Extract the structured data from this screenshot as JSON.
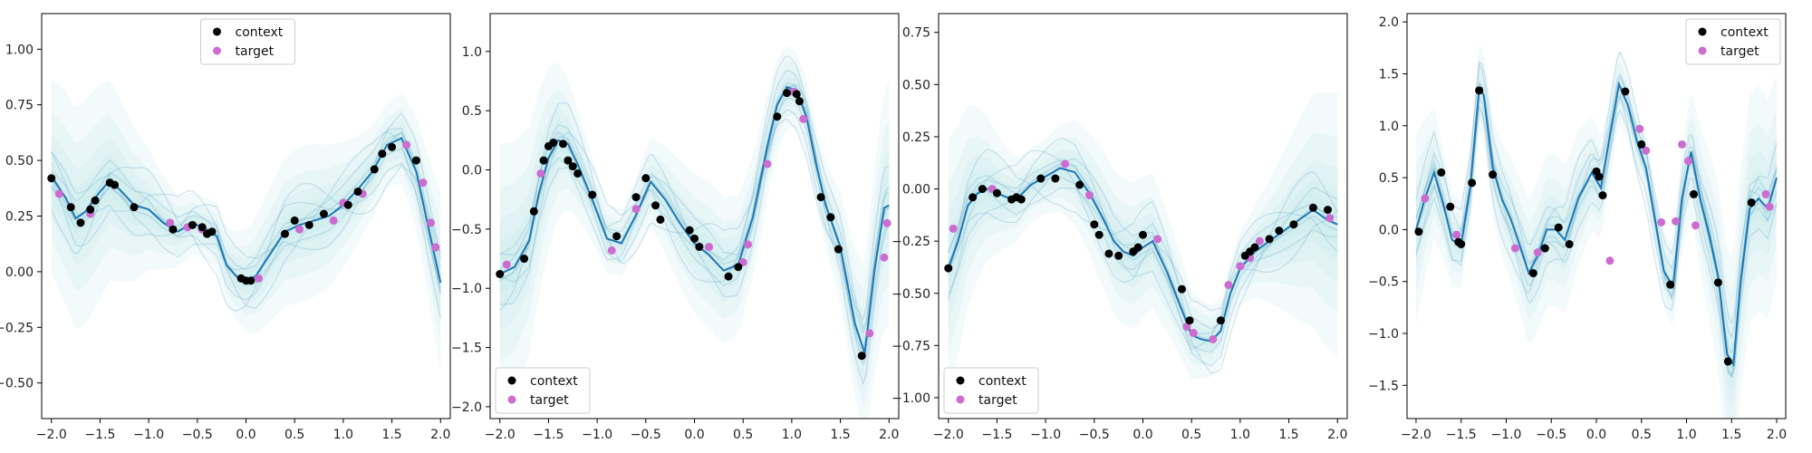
{
  "colors": {
    "context": "#000000",
    "target": "#cc6cd1",
    "mean_line": "#1f77b4",
    "sample_line": "#5aa2c8",
    "band": "#bfe6ea"
  },
  "chart_data": [
    {
      "type": "line",
      "xlim": [
        -2.1,
        2.1
      ],
      "ylim": [
        -0.66,
        1.16
      ],
      "xticks": [
        -2.0,
        -1.5,
        -1.0,
        -0.5,
        0.0,
        0.5,
        1.0,
        1.5,
        2.0
      ],
      "xtick_labels": [
        "−2.0",
        "−1.5",
        "−1.0",
        "−0.5",
        "0.0",
        "0.5",
        "1.0",
        "1.5",
        "2.0"
      ],
      "yticks": [
        -0.5,
        -0.25,
        0.0,
        0.25,
        0.5,
        0.75,
        1.0
      ],
      "ytick_labels": [
        "−0.50",
        "−0.25",
        "0.00",
        "0.25",
        "0.50",
        "0.75",
        "1.00"
      ],
      "grid": false,
      "legend": {
        "position": "top-center",
        "entries": [
          "context",
          "target"
        ]
      },
      "mean": {
        "x": [
          -2.0,
          -1.85,
          -1.75,
          -1.65,
          -1.5,
          -1.4,
          -1.3,
          -1.15,
          -1.0,
          -0.85,
          -0.7,
          -0.55,
          -0.4,
          -0.3,
          -0.2,
          -0.1,
          0.0,
          0.1,
          0.25,
          0.4,
          0.55,
          0.7,
          0.85,
          1.0,
          1.15,
          1.3,
          1.45,
          1.6,
          1.75,
          1.9,
          2.0
        ],
        "y": [
          0.43,
          0.33,
          0.24,
          0.27,
          0.36,
          0.41,
          0.37,
          0.3,
          0.28,
          0.22,
          0.18,
          0.22,
          0.19,
          0.16,
          0.03,
          -0.02,
          -0.04,
          -0.02,
          0.08,
          0.18,
          0.21,
          0.23,
          0.25,
          0.3,
          0.37,
          0.45,
          0.57,
          0.6,
          0.45,
          0.15,
          -0.05
        ]
      },
      "context": {
        "x": [
          -2.0,
          -1.8,
          -1.7,
          -1.6,
          -1.55,
          -1.4,
          -1.35,
          -1.15,
          -0.75,
          -0.55,
          -0.45,
          -0.4,
          -0.35,
          -0.05,
          0.0,
          0.05,
          0.4,
          0.5,
          0.65,
          0.8,
          1.05,
          1.15,
          1.32,
          1.4,
          1.5,
          1.75
        ],
        "y": [
          0.42,
          0.29,
          0.22,
          0.28,
          0.32,
          0.4,
          0.39,
          0.29,
          0.19,
          0.21,
          0.2,
          0.17,
          0.18,
          -0.03,
          -0.04,
          -0.04,
          0.17,
          0.23,
          0.21,
          0.26,
          0.3,
          0.36,
          0.46,
          0.53,
          0.56,
          0.5
        ]
      },
      "target": {
        "x": [
          -1.92,
          -1.6,
          -0.78,
          -0.6,
          -0.45,
          0.13,
          0.55,
          0.9,
          1.0,
          1.2,
          1.65,
          1.82,
          1.9,
          1.95
        ],
        "y": [
          0.35,
          0.26,
          0.22,
          0.2,
          0.19,
          -0.03,
          0.19,
          0.23,
          0.31,
          0.35,
          0.57,
          0.4,
          0.22,
          0.11
        ]
      }
    },
    {
      "type": "line",
      "xlim": [
        -2.1,
        2.1
      ],
      "ylim": [
        -2.1,
        1.32
      ],
      "xticks": [
        -2.0,
        -1.5,
        -1.0,
        -0.5,
        0.0,
        0.5,
        1.0,
        1.5,
        2.0
      ],
      "xtick_labels": [
        "−2.0",
        "−1.5",
        "−1.0",
        "−0.5",
        "0.0",
        "0.5",
        "1.0",
        "1.5",
        "2.0"
      ],
      "yticks": [
        -2.0,
        -1.5,
        -1.0,
        -0.5,
        0.0,
        0.5,
        1.0
      ],
      "ytick_labels": [
        "−2.0",
        "−1.5",
        "−1.0",
        "−0.5",
        "0.0",
        "0.5",
        "1.0"
      ],
      "grid": false,
      "legend": {
        "position": "bottom-left",
        "entries": [
          "context",
          "target"
        ]
      },
      "mean": {
        "x": [
          -2.0,
          -1.85,
          -1.7,
          -1.6,
          -1.5,
          -1.4,
          -1.3,
          -1.2,
          -1.05,
          -0.9,
          -0.75,
          -0.6,
          -0.45,
          -0.3,
          -0.15,
          0.0,
          0.15,
          0.3,
          0.45,
          0.6,
          0.75,
          0.85,
          0.95,
          1.05,
          1.15,
          1.25,
          1.35,
          1.5,
          1.65,
          1.75,
          1.85,
          1.95,
          2.0
        ],
        "y": [
          -0.88,
          -0.82,
          -0.6,
          -0.2,
          0.1,
          0.25,
          0.22,
          0.05,
          -0.25,
          -0.58,
          -0.62,
          -0.38,
          -0.1,
          -0.25,
          -0.45,
          -0.62,
          -0.72,
          -0.85,
          -0.8,
          -0.4,
          0.2,
          0.55,
          0.7,
          0.67,
          0.45,
          0.05,
          -0.3,
          -0.65,
          -1.3,
          -1.55,
          -0.85,
          -0.32,
          -0.3
        ]
      },
      "context": {
        "x": [
          -2.0,
          -1.75,
          -1.65,
          -1.55,
          -1.5,
          -1.45,
          -1.35,
          -1.3,
          -1.25,
          -1.2,
          -1.05,
          -0.8,
          -0.6,
          -0.5,
          -0.4,
          -0.35,
          -0.05,
          0.0,
          0.05,
          0.35,
          0.45,
          0.85,
          0.95,
          1.05,
          1.08,
          1.3,
          1.4,
          1.48,
          1.72
        ],
        "y": [
          -0.88,
          -0.75,
          -0.35,
          0.08,
          0.2,
          0.23,
          0.22,
          0.08,
          0.03,
          -0.03,
          -0.21,
          -0.56,
          -0.23,
          -0.07,
          -0.3,
          -0.42,
          -0.51,
          -0.58,
          -0.65,
          -0.9,
          -0.82,
          0.45,
          0.65,
          0.64,
          0.58,
          -0.23,
          -0.4,
          -0.67,
          -1.57
        ]
      },
      "target": {
        "x": [
          -1.93,
          -1.58,
          -0.85,
          -0.6,
          0.15,
          0.5,
          0.55,
          0.75,
          0.95,
          1.02,
          1.12,
          1.8,
          1.95,
          1.98
        ],
        "y": [
          -0.8,
          -0.03,
          -0.68,
          -0.33,
          -0.65,
          -0.78,
          -0.63,
          0.05,
          0.65,
          0.66,
          0.43,
          -1.38,
          -0.74,
          -0.45
        ]
      }
    },
    {
      "type": "line",
      "xlim": [
        -2.1,
        2.1
      ],
      "ylim": [
        -1.1,
        0.84
      ],
      "xticks": [
        -2.0,
        -1.5,
        -1.0,
        -0.5,
        0.0,
        0.5,
        1.0,
        1.5,
        2.0
      ],
      "xtick_labels": [
        "−2.0",
        "−1.5",
        "−1.0",
        "−0.5",
        "0.0",
        "0.5",
        "1.0",
        "1.5",
        "2.0"
      ],
      "yticks": [
        -1.0,
        -0.75,
        -0.5,
        -0.25,
        0.0,
        0.25,
        0.5,
        0.75
      ],
      "ytick_labels": [
        "−1.00",
        "−0.75",
        "−0.50",
        "−0.25",
        "0.00",
        "0.25",
        "0.50",
        "0.75"
      ],
      "grid": false,
      "legend": {
        "position": "bottom-left",
        "entries": [
          "context",
          "target"
        ]
      },
      "mean": {
        "x": [
          -2.0,
          -1.9,
          -1.8,
          -1.7,
          -1.6,
          -1.5,
          -1.4,
          -1.3,
          -1.15,
          -1.0,
          -0.85,
          -0.7,
          -0.55,
          -0.4,
          -0.3,
          -0.2,
          -0.1,
          0.0,
          0.1,
          0.25,
          0.4,
          0.5,
          0.6,
          0.7,
          0.8,
          0.9,
          1.0,
          1.15,
          1.3,
          1.45,
          1.6,
          1.75,
          1.9,
          2.0
        ],
        "y": [
          -0.38,
          -0.25,
          -0.08,
          -0.02,
          0.0,
          -0.02,
          -0.04,
          -0.05,
          0.02,
          0.06,
          0.1,
          0.08,
          -0.02,
          -0.15,
          -0.25,
          -0.3,
          -0.32,
          -0.28,
          -0.25,
          -0.4,
          -0.58,
          -0.7,
          -0.72,
          -0.73,
          -0.68,
          -0.5,
          -0.38,
          -0.3,
          -0.25,
          -0.2,
          -0.15,
          -0.1,
          -0.15,
          -0.17
        ]
      },
      "context": {
        "x": [
          -2.0,
          -1.75,
          -1.65,
          -1.5,
          -1.35,
          -1.3,
          -1.25,
          -1.05,
          -0.9,
          -0.65,
          -0.5,
          -0.45,
          -0.35,
          -0.25,
          -0.1,
          -0.05,
          0.0,
          0.4,
          0.48,
          0.8,
          1.05,
          1.1,
          1.15,
          1.3,
          1.4,
          1.55,
          1.75,
          1.9
        ],
        "y": [
          -0.38,
          -0.04,
          0.0,
          -0.02,
          -0.05,
          -0.04,
          -0.05,
          0.05,
          0.05,
          0.02,
          -0.17,
          -0.22,
          -0.31,
          -0.32,
          -0.3,
          -0.28,
          -0.22,
          -0.48,
          -0.63,
          -0.63,
          -0.32,
          -0.3,
          -0.28,
          -0.24,
          -0.2,
          -0.17,
          -0.09,
          -0.1
        ]
      },
      "target": {
        "x": [
          -1.95,
          -1.55,
          -0.8,
          -0.55,
          0.15,
          0.45,
          0.52,
          0.72,
          0.88,
          1.0,
          1.1,
          1.2,
          1.92
        ],
        "y": [
          -0.19,
          0.0,
          0.12,
          -0.03,
          -0.24,
          -0.66,
          -0.69,
          -0.72,
          -0.46,
          -0.37,
          -0.33,
          -0.25,
          -0.14
        ]
      }
    },
    {
      "type": "line",
      "xlim": [
        -2.1,
        2.1
      ],
      "ylim": [
        -1.82,
        2.08
      ],
      "xticks": [
        -2.0,
        -1.5,
        -1.0,
        -0.5,
        0.0,
        0.5,
        1.0,
        1.5,
        2.0
      ],
      "xtick_labels": [
        "−2.0",
        "−1.5",
        "−1.0",
        "−0.5",
        "0.0",
        "0.5",
        "1.0",
        "1.5",
        "2.0"
      ],
      "yticks": [
        -1.5,
        -1.0,
        -0.5,
        0.0,
        0.5,
        1.0,
        1.5,
        2.0
      ],
      "ytick_labels": [
        "−1.5",
        "−1.0",
        "−0.5",
        "0.0",
        "0.5",
        "1.0",
        "1.5",
        "2.0"
      ],
      "grid": false,
      "legend": {
        "position": "top-right",
        "entries": [
          "context",
          "target"
        ]
      },
      "mean": {
        "x": [
          -2.0,
          -1.9,
          -1.8,
          -1.7,
          -1.6,
          -1.5,
          -1.4,
          -1.3,
          -1.25,
          -1.15,
          -1.05,
          -0.95,
          -0.85,
          -0.75,
          -0.65,
          -0.55,
          -0.45,
          -0.35,
          -0.2,
          -0.05,
          0.05,
          0.15,
          0.25,
          0.35,
          0.45,
          0.55,
          0.65,
          0.75,
          0.85,
          0.95,
          1.05,
          1.15,
          1.25,
          1.35,
          1.45,
          1.52,
          1.6,
          1.7,
          1.8,
          1.9,
          2.0
        ],
        "y": [
          0.0,
          0.3,
          0.55,
          0.25,
          -0.1,
          -0.15,
          0.4,
          1.35,
          1.3,
          0.6,
          0.3,
          0.1,
          -0.15,
          -0.42,
          -0.25,
          0.0,
          0.0,
          -0.1,
          0.3,
          0.55,
          0.4,
          0.9,
          1.4,
          1.2,
          0.85,
          0.6,
          0.1,
          -0.4,
          -0.55,
          0.3,
          0.75,
          0.3,
          -0.05,
          -0.45,
          -1.2,
          -1.3,
          -0.5,
          0.2,
          0.3,
          0.2,
          0.5
        ]
      },
      "context": {
        "x": [
          -1.97,
          -1.72,
          -1.62,
          -1.53,
          -1.5,
          -1.38,
          -1.3,
          -1.15,
          -0.7,
          -0.57,
          -0.42,
          -0.3,
          0.0,
          0.03,
          0.07,
          0.32,
          0.5,
          0.82,
          1.08,
          1.35,
          1.46,
          1.72
        ],
        "y": [
          -0.02,
          0.55,
          0.22,
          -0.12,
          -0.14,
          0.45,
          1.34,
          0.53,
          -0.42,
          -0.18,
          0.02,
          -0.14,
          0.56,
          0.51,
          0.33,
          1.33,
          0.82,
          -0.53,
          0.34,
          -0.51,
          -1.27,
          0.26
        ]
      },
      "target": {
        "x": [
          -1.9,
          -1.55,
          -0.9,
          -0.65,
          0.15,
          0.48,
          0.55,
          0.72,
          0.88,
          0.95,
          1.02,
          1.1,
          1.88,
          1.92
        ],
        "y": [
          0.3,
          -0.05,
          -0.18,
          -0.22,
          -0.3,
          0.97,
          0.76,
          0.07,
          0.08,
          0.82,
          0.66,
          0.04,
          0.34,
          0.22
        ]
      }
    }
  ]
}
